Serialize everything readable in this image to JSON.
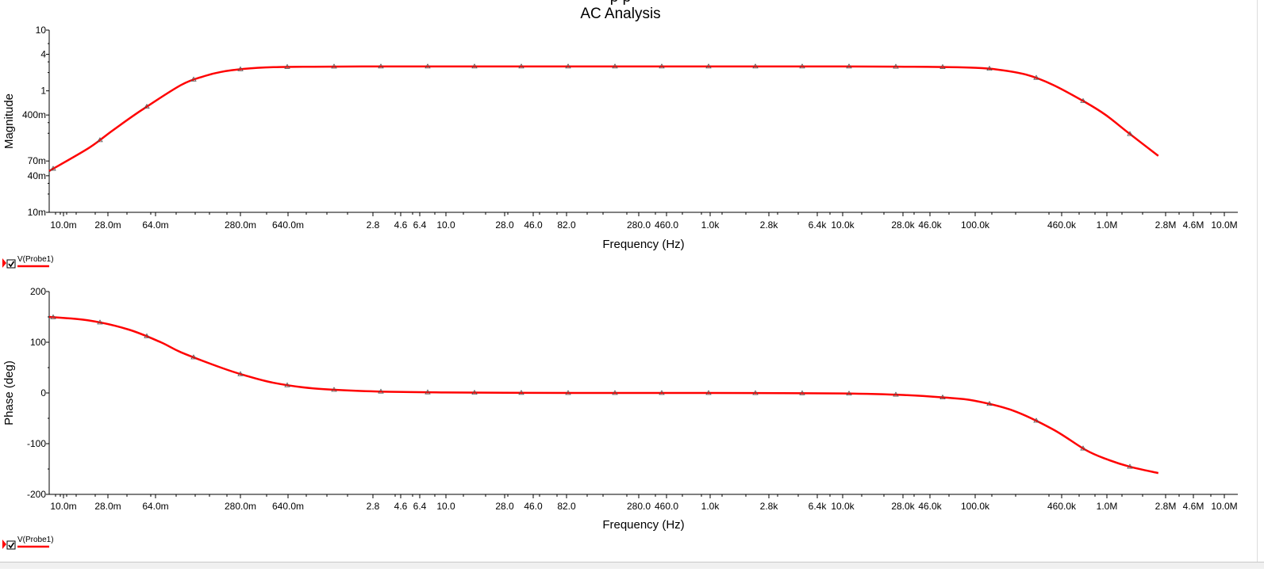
{
  "title_partial": "p p",
  "title": "AC Analysis",
  "colors": {
    "trace": "#ff0000",
    "axis": "#000000",
    "marker": "#555555",
    "legend_arrow": "#ff0000"
  },
  "x_tick_labels": [
    "10.0m",
    "28.0m",
    "64.0m",
    "280.0m",
    "640.0m",
    "2.8",
    "4.6",
    "6.4",
    "10.0",
    "28.0",
    "46.0",
    "82.0",
    "280.0",
    "460.0",
    "1.0k",
    "2.8k",
    "6.4k",
    "10.0k",
    "28.0k",
    "46.0k",
    "100.0k",
    "460.0k",
    "1.0M",
    "2.8M",
    "4.6M",
    "10.0M"
  ],
  "legend": {
    "label": "V(Probe1)",
    "checked": true,
    "icon": "checkbox-icon"
  },
  "chart_data": [
    {
      "type": "line",
      "name": "magnitude",
      "xlabel": "Frequency (Hz)",
      "ylabel": "Magnitude",
      "xscale": "log",
      "yscale": "log",
      "xlim": [
        0.01,
        10000000
      ],
      "ylim": [
        0.01,
        10
      ],
      "y_ticks": [
        {
          "v": 10,
          "label": "10"
        },
        {
          "v": 4,
          "label": "4"
        },
        {
          "v": 1,
          "label": "1"
        },
        {
          "v": 0.4,
          "label": "400m"
        },
        {
          "v": 0.07,
          "label": "70m"
        },
        {
          "v": 0.04,
          "label": "40m"
        },
        {
          "v": 0.01,
          "label": "10m"
        }
      ],
      "series": [
        {
          "values_x": [
            0.01,
            0.02,
            0.03,
            0.05,
            0.1,
            0.15,
            0.2,
            0.3,
            0.5,
            1,
            3,
            10,
            100,
            1000,
            10000,
            30000,
            60000,
            100000,
            150000,
            250000,
            400000,
            700000,
            1000000,
            1500000,
            2500000
          ],
          "values_y": [
            0.048,
            0.115,
            0.22,
            0.48,
            1.25,
            1.75,
            2.05,
            2.3,
            2.45,
            2.5,
            2.52,
            2.52,
            2.52,
            2.52,
            2.52,
            2.5,
            2.47,
            2.4,
            2.25,
            1.85,
            1.25,
            0.65,
            0.4,
            0.2,
            0.085
          ]
        }
      ]
    },
    {
      "type": "line",
      "name": "phase",
      "xlabel": "Frequency (Hz)",
      "ylabel": "Phase (deg)",
      "xscale": "log",
      "xlim": [
        0.01,
        10000000
      ],
      "ylim": [
        -200,
        200
      ],
      "y_ticks": [
        {
          "v": 200,
          "label": "200"
        },
        {
          "v": 100,
          "label": "100"
        },
        {
          "v": 0,
          "label": "0"
        },
        {
          "v": -100,
          "label": "-100"
        },
        {
          "v": -200,
          "label": "-200"
        }
      ],
      "series": [
        {
          "values_x": [
            0.01,
            0.02,
            0.04,
            0.07,
            0.1,
            0.2,
            0.3,
            0.5,
            1,
            3,
            10,
            100,
            1000,
            10000,
            30000,
            60000,
            100000,
            200000,
            400000,
            700000,
            1000000,
            1500000,
            2500000
          ],
          "values_y": [
            150,
            143,
            125,
            100,
            80,
            50,
            35,
            20,
            9,
            3,
            1,
            0,
            0,
            -1,
            -4,
            -9,
            -15,
            -35,
            -72,
            -112,
            -130,
            -145,
            -158
          ]
        }
      ]
    }
  ]
}
